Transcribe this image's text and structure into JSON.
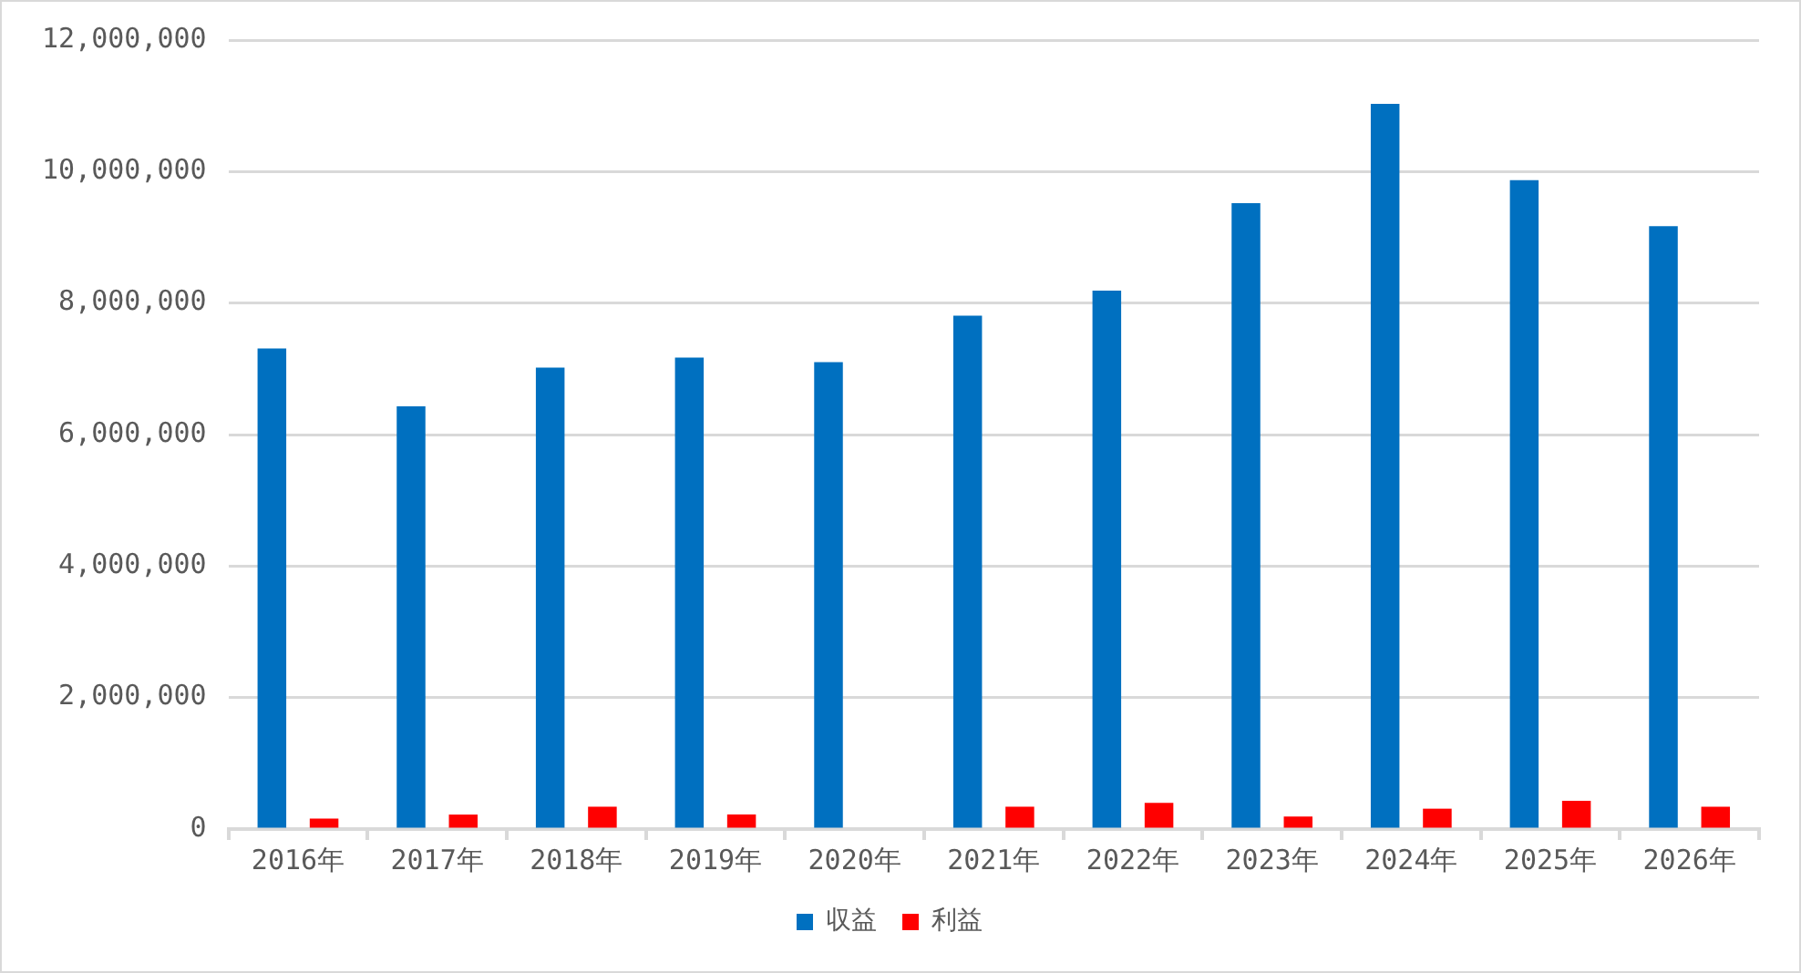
{
  "chart_data": {
    "type": "bar",
    "categories": [
      "2016年",
      "2017年",
      "2018年",
      "2019年",
      "2020年",
      "2021年",
      "2022年",
      "2023年",
      "2024年",
      "2025年",
      "2026年"
    ],
    "series": [
      {
        "name": "収益",
        "color": "#0070c0",
        "values": [
          7310000,
          6430000,
          7020000,
          7170000,
          7100000,
          7810000,
          8190000,
          9520000,
          11030000,
          9870000,
          9170000
        ]
      },
      {
        "name": "利益",
        "color": "#ff0000",
        "values": [
          160000,
          220000,
          340000,
          220000,
          null,
          340000,
          400000,
          190000,
          310000,
          430000,
          340000
        ]
      }
    ],
    "ylim": [
      0,
      12000000
    ],
    "yticks": [
      0,
      {
        "value": 2000000,
        "label": "2,000,000"
      },
      {
        "value": 4000000,
        "label": "4,000,000"
      },
      {
        "value": 6000000,
        "label": "6,000,000"
      },
      {
        "value": 8000000,
        "label": "8,000,000"
      },
      {
        "value": 10000000,
        "label": "10,000,000"
      },
      {
        "value": 12000000,
        "label": "12,000,000"
      }
    ],
    "grid": "y",
    "legend": "bottom"
  }
}
